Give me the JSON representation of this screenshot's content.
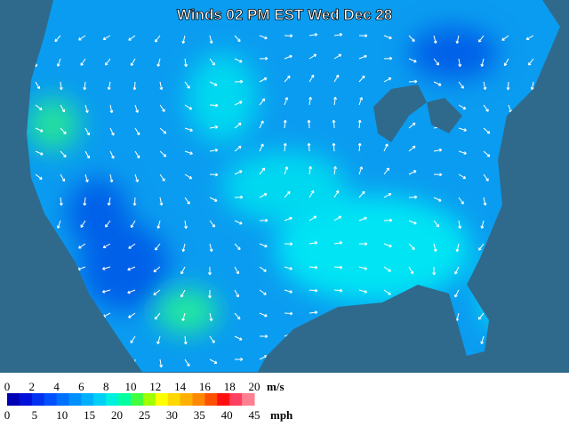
{
  "title": "Winds 02 PM EST Wed Dec 28",
  "legend": {
    "ms_ticks": [
      0,
      2,
      4,
      6,
      8,
      10,
      12,
      14,
      16,
      18,
      20
    ],
    "ms_unit": "m/s",
    "mph_ticks": [
      0,
      5,
      10,
      15,
      20,
      25,
      30,
      35,
      40,
      45
    ],
    "mph_unit": "mph",
    "colors": [
      "#0000b4",
      "#0010d8",
      "#0030f0",
      "#0050ff",
      "#0070ff",
      "#0090ff",
      "#00b0ff",
      "#00d0f8",
      "#00f0e0",
      "#00ffa0",
      "#40ff40",
      "#a0ff00",
      "#ffff00",
      "#ffd800",
      "#ffb000",
      "#ff8800",
      "#ff5000",
      "#ff1010",
      "#ff4060",
      "#ff8090"
    ]
  }
}
